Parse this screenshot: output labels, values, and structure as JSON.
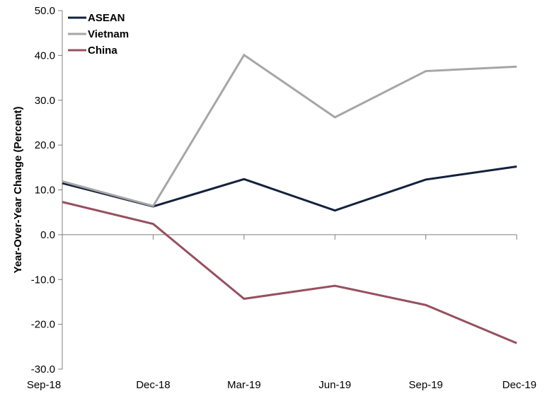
{
  "chart_data": {
    "type": "line",
    "title": "",
    "xlabel": "",
    "ylabel": "Year-Over-Year Change (Percent)",
    "categories": [
      "Sep-18",
      "Dec-18",
      "Mar-19",
      "Jun-19",
      "Sep-19",
      "Dec-19"
    ],
    "ylim": [
      -30,
      50
    ],
    "yticks": [
      "50.0",
      "40.0",
      "30.0",
      "20.0",
      "10.0",
      "0.0",
      "-10.0",
      "-20.0",
      "-30.0"
    ],
    "grid": false,
    "legend_position": "top-left",
    "series": [
      {
        "name": "ASEAN",
        "color": "#14213d",
        "values": [
          11.5,
          6.3,
          12.4,
          5.4,
          12.3,
          15.2
        ]
      },
      {
        "name": "Vietnam",
        "color": "#a6a6a6",
        "values": [
          11.9,
          6.4,
          40.1,
          26.2,
          36.5,
          37.5
        ]
      },
      {
        "name": "China",
        "color": "#96505f",
        "values": [
          7.3,
          2.4,
          -14.3,
          -11.4,
          -15.7,
          -24.2
        ]
      }
    ]
  }
}
